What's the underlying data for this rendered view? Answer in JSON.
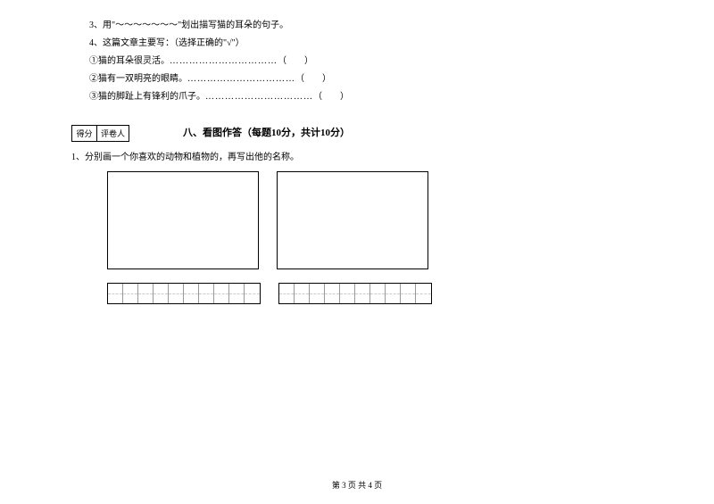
{
  "questions": {
    "q3": "3、用\"～～～～～～～\"划出描写猫的耳朵的句子。",
    "q4_title": "4、这篇文章主要写：（选择正确的\"√\"）",
    "q4_opt1_text": "①猫的耳朵很灵活。",
    "q4_opt2_text": "②猫有一双明亮的眼睛。",
    "q4_opt3_text": "③猫的脚趾上有锋利的爪子。",
    "dots": "……………………………",
    "paren": "（　　）"
  },
  "score_table": {
    "col1": "得分",
    "col2": "评卷人"
  },
  "section": {
    "title": "八、看图作答（每题10分，共计10分）"
  },
  "sub_q": {
    "text": "1、分别画一个你喜欢的动物和植物的，再写出他的名称。"
  },
  "footer": {
    "text": "第 3 页  共 4 页"
  },
  "layout": {
    "grid_cells": 10
  }
}
